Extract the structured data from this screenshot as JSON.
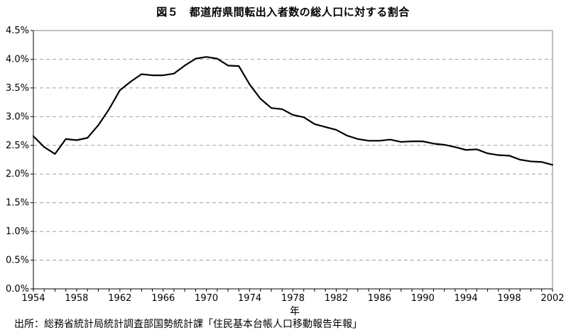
{
  "title": "図５　都道府県間転出入者数の総人口に対する割合",
  "source": "出所：総務省統計局統計調査部国勢統計課「住民基本台帳人口移動報告年報」",
  "chart_data": {
    "type": "line",
    "title": "図５　都道府県間転出入者数の総人口に対する割合",
    "xlabel": "年",
    "ylabel": "",
    "x": [
      1954,
      1955,
      1956,
      1957,
      1958,
      1959,
      1960,
      1961,
      1962,
      1963,
      1964,
      1965,
      1966,
      1967,
      1968,
      1969,
      1970,
      1971,
      1972,
      1973,
      1974,
      1975,
      1976,
      1977,
      1978,
      1979,
      1980,
      1981,
      1982,
      1983,
      1984,
      1985,
      1986,
      1987,
      1988,
      1989,
      1990,
      1991,
      1992,
      1993,
      1994,
      1995,
      1996,
      1997,
      1998,
      1999,
      2000,
      2001,
      2002
    ],
    "series": [
      {
        "name": "",
        "values": [
          2.66,
          2.47,
          2.35,
          2.61,
          2.59,
          2.63,
          2.85,
          3.13,
          3.46,
          3.61,
          3.74,
          3.72,
          3.72,
          3.75,
          3.89,
          4.01,
          4.04,
          4.01,
          3.89,
          3.88,
          3.56,
          3.31,
          3.15,
          3.13,
          3.03,
          2.99,
          2.87,
          2.82,
          2.77,
          2.67,
          2.61,
          2.58,
          2.58,
          2.6,
          2.56,
          2.57,
          2.57,
          2.53,
          2.51,
          2.47,
          2.42,
          2.43,
          2.36,
          2.33,
          2.32,
          2.25,
          2.22,
          2.21,
          2.16
        ]
      }
    ],
    "xticks": [
      "1954",
      "1958",
      "1962",
      "1966",
      "1970",
      "1974",
      "1978",
      "1982",
      "1986",
      "1990",
      "1994",
      "1998",
      "2002"
    ],
    "yticks": [
      "0.0%",
      "0.5%",
      "1.0%",
      "1.5%",
      "2.0%",
      "2.5%",
      "3.0%",
      "3.5%",
      "4.0%",
      "4.5%"
    ],
    "xlim": [
      1954,
      2002
    ],
    "ylim": [
      0,
      4.5
    ],
    "grid": true,
    "line_color": "#000000",
    "grid_color": "#a0a0a0"
  }
}
